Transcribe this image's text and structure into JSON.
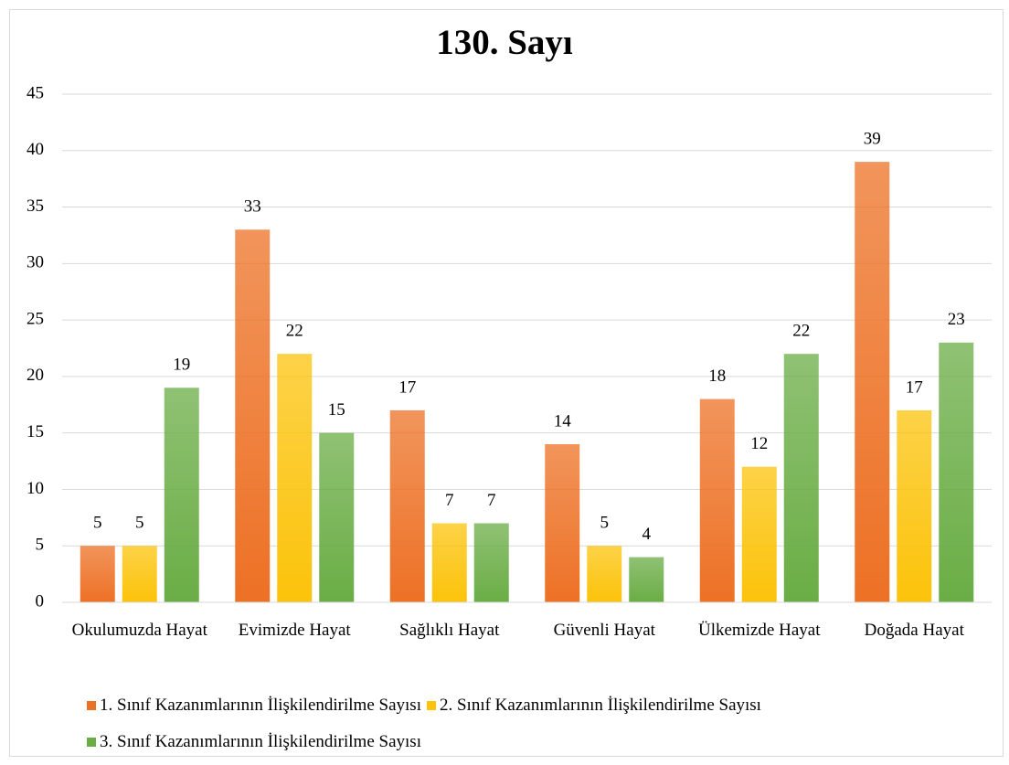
{
  "chart_data": {
    "type": "bar",
    "title": "130. Sayı",
    "categories": [
      "Okulumuzda Hayat",
      "Evimizde Hayat",
      "Sağlıklı Hayat",
      "Güvenli Hayat",
      "Ülkemizde Hayat",
      "Doğada Hayat"
    ],
    "series": [
      {
        "name": "1. Sınıf Kazanımlarının İlişkilendirilme Sayısı",
        "color": "#ed7125",
        "values": [
          5,
          33,
          17,
          14,
          18,
          39
        ]
      },
      {
        "name": "2. Sınıf Kazanımlarının İlişkilendirilme Sayısı",
        "color": "#fcc30a",
        "values": [
          5,
          22,
          7,
          5,
          12,
          17
        ]
      },
      {
        "name": "3. Sınıf Kazanımlarının İlişkilendirilme Sayısı",
        "color": "#6aad45",
        "values": [
          19,
          15,
          7,
          4,
          22,
          23
        ]
      }
    ],
    "ylim": [
      0,
      45
    ],
    "yticks": [
      0,
      5,
      10,
      15,
      20,
      25,
      30,
      35,
      40,
      45
    ],
    "grid": true,
    "legend": "bottom"
  }
}
